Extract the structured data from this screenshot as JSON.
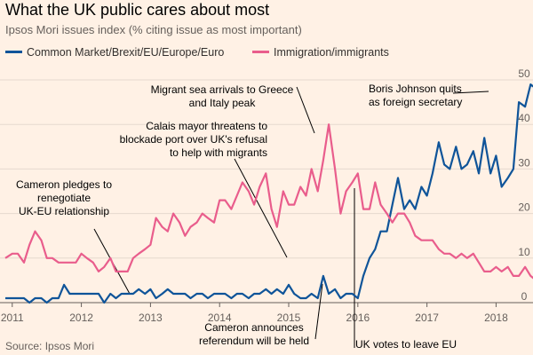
{
  "chart_data": {
    "type": "line",
    "title": "What the UK public cares about most",
    "subtitle": "Ipsos Mori issues index (% citing issue as most important)",
    "source": "Source: Ipsos Mori",
    "xlim": [
      2010.9,
      2018.2
    ],
    "ylim": [
      0,
      52
    ],
    "y_axis_position": "right",
    "x_ticks": [
      {
        "value": 2011,
        "label": "2011"
      },
      {
        "value": 2012,
        "label": "2012"
      },
      {
        "value": 2013,
        "label": "2013"
      },
      {
        "value": 2014,
        "label": "2014"
      },
      {
        "value": 2015,
        "label": "2015"
      },
      {
        "value": 2016,
        "label": "2016"
      },
      {
        "value": 2017,
        "label": "2017"
      },
      {
        "value": 2018,
        "label": "2018"
      }
    ],
    "y_ticks": [
      {
        "value": 0,
        "label": "0"
      },
      {
        "value": 10,
        "label": "10"
      },
      {
        "value": 20,
        "label": "20"
      },
      {
        "value": 30,
        "label": "30"
      },
      {
        "value": 40,
        "label": "40"
      },
      {
        "value": 50,
        "label": "50"
      }
    ],
    "series": [
      {
        "name": "Common Market/Brexit/EU/Europe/Euro",
        "color": "#0f5499",
        "points": [
          [
            2010.9,
            1
          ],
          [
            2011.0,
            1
          ],
          [
            2011.08,
            1
          ],
          [
            2011.17,
            1
          ],
          [
            2011.25,
            0
          ],
          [
            2011.33,
            1
          ],
          [
            2011.42,
            1
          ],
          [
            2011.5,
            0
          ],
          [
            2011.58,
            1
          ],
          [
            2011.67,
            1
          ],
          [
            2011.75,
            4
          ],
          [
            2011.83,
            2
          ],
          [
            2011.92,
            2
          ],
          [
            2012.0,
            2
          ],
          [
            2012.08,
            2
          ],
          [
            2012.17,
            2
          ],
          [
            2012.25,
            2
          ],
          [
            2012.33,
            0
          ],
          [
            2012.42,
            2
          ],
          [
            2012.5,
            1
          ],
          [
            2012.58,
            2
          ],
          [
            2012.67,
            2
          ],
          [
            2012.75,
            2
          ],
          [
            2012.83,
            3
          ],
          [
            2012.92,
            2
          ],
          [
            2013.0,
            3
          ],
          [
            2013.08,
            1
          ],
          [
            2013.17,
            2
          ],
          [
            2013.25,
            3
          ],
          [
            2013.33,
            2
          ],
          [
            2013.42,
            2
          ],
          [
            2013.5,
            2
          ],
          [
            2013.58,
            1
          ],
          [
            2013.67,
            2
          ],
          [
            2013.75,
            2
          ],
          [
            2013.83,
            1
          ],
          [
            2013.92,
            2
          ],
          [
            2014.0,
            2
          ],
          [
            2014.08,
            2
          ],
          [
            2014.17,
            1
          ],
          [
            2014.25,
            2
          ],
          [
            2014.33,
            2
          ],
          [
            2014.42,
            1
          ],
          [
            2014.5,
            2
          ],
          [
            2014.58,
            2
          ],
          [
            2014.67,
            3
          ],
          [
            2014.75,
            2
          ],
          [
            2014.83,
            3
          ],
          [
            2014.92,
            2
          ],
          [
            2015.0,
            4
          ],
          [
            2015.08,
            2
          ],
          [
            2015.17,
            1
          ],
          [
            2015.25,
            1
          ],
          [
            2015.33,
            2
          ],
          [
            2015.42,
            1
          ],
          [
            2015.5,
            6
          ],
          [
            2015.58,
            2
          ],
          [
            2015.67,
            3
          ],
          [
            2015.75,
            1
          ],
          [
            2015.83,
            2
          ],
          [
            2015.92,
            2
          ],
          [
            2016.0,
            1
          ],
          [
            2016.08,
            6
          ],
          [
            2016.17,
            10
          ],
          [
            2016.25,
            12
          ],
          [
            2016.33,
            16
          ],
          [
            2016.42,
            16
          ],
          [
            2016.5,
            22
          ],
          [
            2016.58,
            28
          ],
          [
            2016.67,
            21
          ],
          [
            2016.75,
            23
          ],
          [
            2016.83,
            21
          ],
          [
            2016.92,
            26
          ],
          [
            2017.0,
            24
          ],
          [
            2017.08,
            29
          ],
          [
            2017.17,
            36
          ],
          [
            2017.25,
            31
          ],
          [
            2017.33,
            30
          ],
          [
            2017.42,
            35
          ],
          [
            2017.5,
            30
          ],
          [
            2017.58,
            31
          ],
          [
            2017.67,
            34
          ],
          [
            2017.75,
            29
          ],
          [
            2017.83,
            37
          ],
          [
            2017.92,
            29
          ],
          [
            2018.0,
            33
          ],
          [
            2018.08,
            26
          ],
          [
            2018.17,
            28
          ],
          [
            2018.25,
            30
          ],
          [
            2018.33,
            45
          ],
          [
            2018.42,
            44
          ],
          [
            2018.5,
            49
          ],
          [
            2018.58,
            48
          ],
          [
            2018.67,
            52
          ]
        ]
      },
      {
        "name": "Immigration/immigrants",
        "color": "#e95d8c",
        "points": [
          [
            2010.9,
            10
          ],
          [
            2011.0,
            11
          ],
          [
            2011.08,
            11
          ],
          [
            2011.17,
            9
          ],
          [
            2011.25,
            13
          ],
          [
            2011.33,
            16
          ],
          [
            2011.42,
            14
          ],
          [
            2011.5,
            10
          ],
          [
            2011.58,
            10
          ],
          [
            2011.67,
            9
          ],
          [
            2011.75,
            9
          ],
          [
            2011.83,
            9
          ],
          [
            2011.92,
            9
          ],
          [
            2012.0,
            11
          ],
          [
            2012.08,
            10
          ],
          [
            2012.17,
            9
          ],
          [
            2012.25,
            7
          ],
          [
            2012.33,
            8
          ],
          [
            2012.42,
            10
          ],
          [
            2012.5,
            7
          ],
          [
            2012.58,
            7
          ],
          [
            2012.67,
            7
          ],
          [
            2012.75,
            10
          ],
          [
            2012.83,
            11
          ],
          [
            2012.92,
            12
          ],
          [
            2013.0,
            13
          ],
          [
            2013.08,
            19
          ],
          [
            2013.17,
            17
          ],
          [
            2013.25,
            16
          ],
          [
            2013.33,
            20
          ],
          [
            2013.42,
            18
          ],
          [
            2013.5,
            15
          ],
          [
            2013.58,
            17
          ],
          [
            2013.67,
            18
          ],
          [
            2013.75,
            20
          ],
          [
            2013.83,
            19
          ],
          [
            2013.92,
            18
          ],
          [
            2014.0,
            23
          ],
          [
            2014.08,
            23
          ],
          [
            2014.17,
            21
          ],
          [
            2014.25,
            24
          ],
          [
            2014.33,
            27
          ],
          [
            2014.42,
            25
          ],
          [
            2014.5,
            22
          ],
          [
            2014.58,
            26
          ],
          [
            2014.67,
            29
          ],
          [
            2014.75,
            21
          ],
          [
            2014.83,
            17
          ],
          [
            2014.92,
            25
          ],
          [
            2015.0,
            22
          ],
          [
            2015.08,
            22
          ],
          [
            2015.17,
            26
          ],
          [
            2015.25,
            24
          ],
          [
            2015.33,
            30
          ],
          [
            2015.42,
            25
          ],
          [
            2015.5,
            32
          ],
          [
            2015.58,
            40
          ],
          [
            2015.67,
            30
          ],
          [
            2015.75,
            20
          ],
          [
            2015.83,
            25
          ],
          [
            2015.92,
            27
          ],
          [
            2016.0,
            29
          ],
          [
            2016.08,
            21
          ],
          [
            2016.17,
            21
          ],
          [
            2016.25,
            27
          ],
          [
            2016.33,
            22
          ],
          [
            2016.42,
            20
          ],
          [
            2016.5,
            18
          ],
          [
            2016.58,
            20
          ],
          [
            2016.67,
            20
          ],
          [
            2016.75,
            18
          ],
          [
            2016.83,
            15
          ],
          [
            2016.92,
            14
          ],
          [
            2017.0,
            14
          ],
          [
            2017.08,
            14
          ],
          [
            2017.17,
            12
          ],
          [
            2017.25,
            11
          ],
          [
            2017.33,
            11
          ],
          [
            2017.42,
            10
          ],
          [
            2017.5,
            11
          ],
          [
            2017.58,
            10
          ],
          [
            2017.67,
            11
          ],
          [
            2017.75,
            9
          ],
          [
            2017.83,
            7
          ],
          [
            2017.92,
            7
          ],
          [
            2018.0,
            8
          ],
          [
            2018.08,
            7
          ],
          [
            2018.17,
            8
          ],
          [
            2018.25,
            6
          ],
          [
            2018.33,
            6
          ],
          [
            2018.42,
            8
          ],
          [
            2018.5,
            6
          ],
          [
            2018.58,
            5
          ]
        ]
      }
    ],
    "annotations": [
      {
        "id": "cameron-pledge",
        "lines": [
          "Cameron pledges to",
          "renegotiate",
          "UK-EU relationship"
        ],
        "anchor": "middle",
        "target": [
          2013.0,
          1
        ]
      },
      {
        "id": "calais-mayor",
        "lines": [
          "Calais mayor threatens to",
          "blockade port over UK's refusal",
          "to help with migrants"
        ],
        "anchor": "end",
        "target": [
          2014.6,
          5
        ]
      },
      {
        "id": "migrant-arrivals",
        "lines": [
          "Migrant sea arrivals to Greece",
          "and Italy peak"
        ],
        "anchor": "middle",
        "target": [
          2015.68,
          10
        ]
      },
      {
        "id": "cameron-referendum",
        "lines": [
          "Cameron announces",
          "referendum will be held"
        ],
        "anchor": "middle",
        "target": [
          2016.05,
          2
        ]
      },
      {
        "id": "uk-votes-leave",
        "lines": [
          "UK votes to leave EU"
        ],
        "anchor": "start",
        "target": [
          2016.5,
          18
        ]
      },
      {
        "id": "johnson-quits",
        "lines": [
          "Boris Johnson quits",
          "as foreign secretary"
        ],
        "anchor": "start",
        "target": [
          2018.3,
          48
        ]
      }
    ]
  }
}
